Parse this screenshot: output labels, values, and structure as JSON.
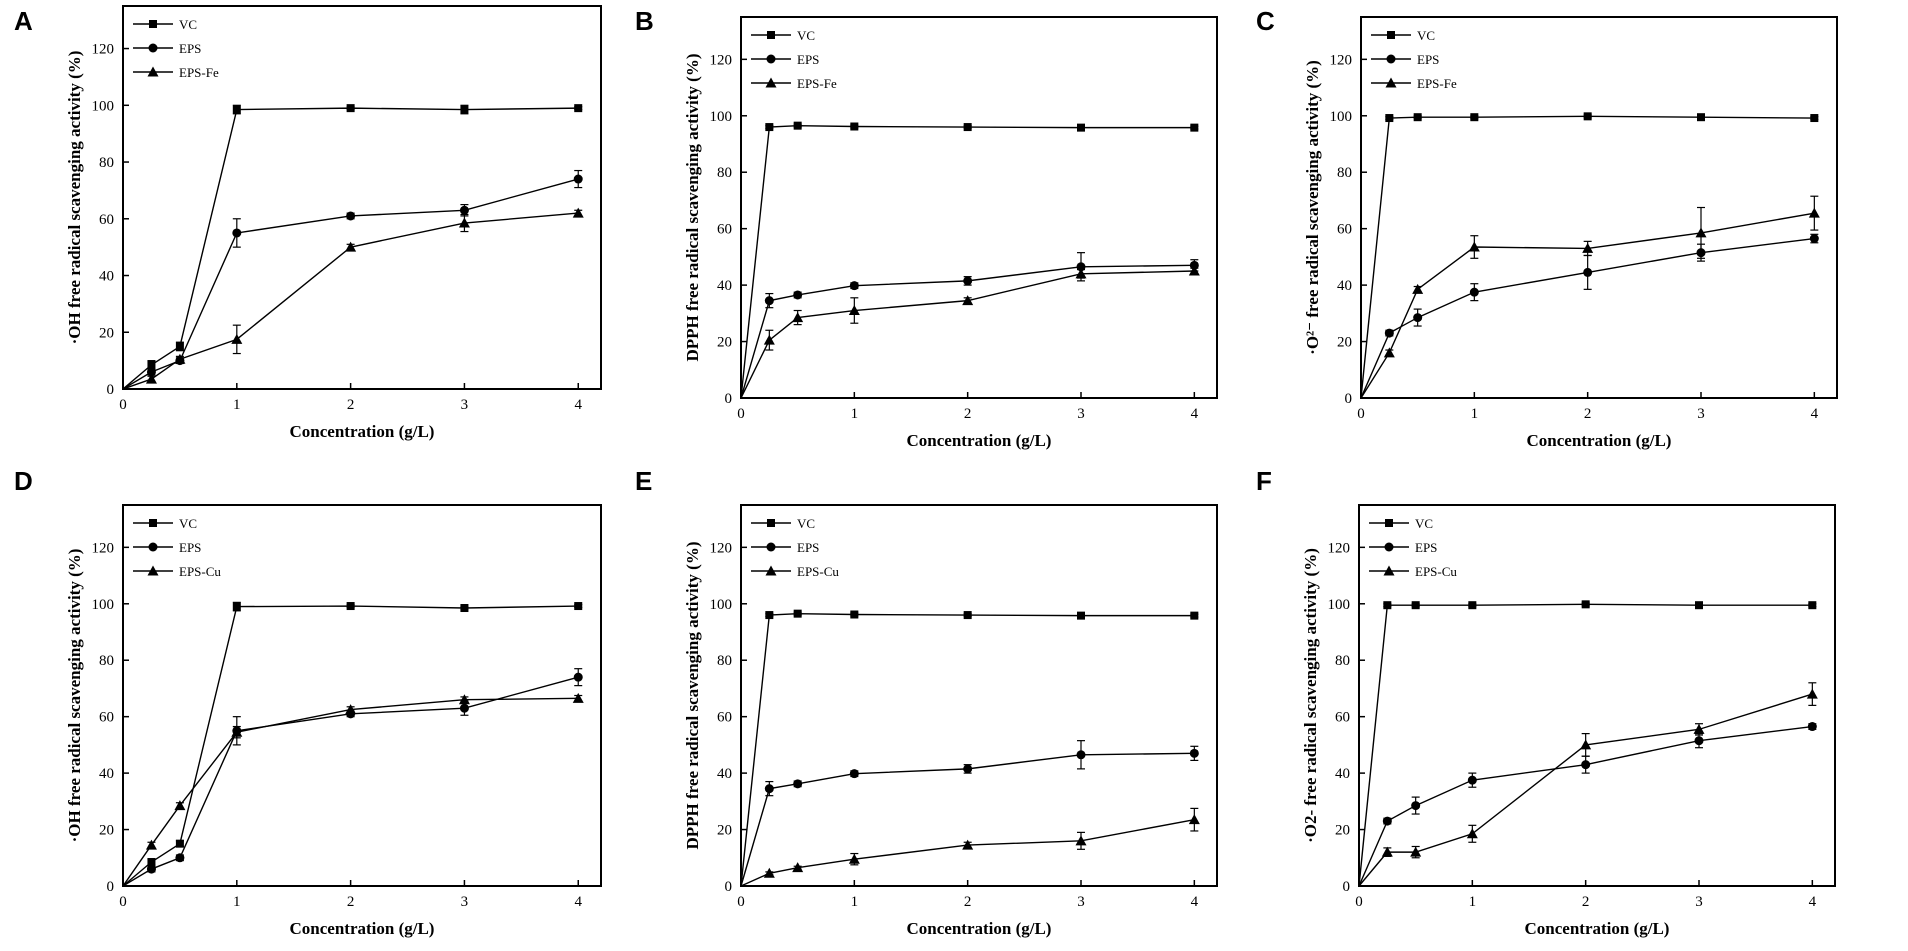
{
  "figure": {
    "background": "#ffffff",
    "line_color": "#000000"
  },
  "chart_data": [
    {
      "panel": "A",
      "type": "line",
      "xlabel": "Concentration (g/L)",
      "ylabel": "·OH free radical scavenging activity (%)",
      "xlim": [
        0,
        4.2
      ],
      "ylim": [
        0,
        135
      ],
      "xticks": [
        "0",
        "1",
        "2",
        "3",
        "4"
      ],
      "yticks": [
        "0",
        "20",
        "40",
        "60",
        "80",
        "100",
        "120"
      ],
      "legend_position": "top-left",
      "series": [
        {
          "name": "VC",
          "marker": "square",
          "x": [
            0,
            0.25,
            0.5,
            1,
            2,
            3,
            4
          ],
          "y": [
            0,
            8.5,
            15,
            98.5,
            99,
            98.5,
            99
          ],
          "err": [
            0,
            1.5,
            1.5,
            1.5,
            0.5,
            1.5,
            0.5
          ]
        },
        {
          "name": "EPS",
          "marker": "circle",
          "x": [
            0,
            0.25,
            0.5,
            1,
            2,
            3,
            4
          ],
          "y": [
            0,
            6,
            10,
            55,
            61,
            63,
            74
          ],
          "err": [
            0,
            1,
            1,
            5,
            1,
            2,
            3
          ]
        },
        {
          "name": "EPS-Fe",
          "marker": "triangle",
          "x": [
            0,
            0.25,
            0.5,
            1,
            2,
            3,
            4
          ],
          "y": [
            0,
            3.5,
            10.5,
            17.5,
            50,
            58.5,
            62
          ],
          "err": [
            0,
            1,
            1,
            5,
            1,
            3,
            1
          ]
        }
      ]
    },
    {
      "panel": "B",
      "type": "line",
      "xlabel": "Concentration (g/L)",
      "ylabel": "DPPH free radical scavenging activity (%)",
      "xlim": [
        0,
        4.2
      ],
      "ylim": [
        0,
        135
      ],
      "xticks": [
        "0",
        "1",
        "2",
        "3",
        "4"
      ],
      "yticks": [
        "0",
        "20",
        "40",
        "60",
        "80",
        "100",
        "120"
      ],
      "legend_position": "top-left",
      "series": [
        {
          "name": "VC",
          "marker": "square",
          "x": [
            0,
            0.25,
            0.5,
            1,
            2,
            3,
            4
          ],
          "y": [
            0,
            96,
            96.5,
            96.2,
            96,
            95.8,
            95.8
          ],
          "err": [
            0,
            0.5,
            0.5,
            0.5,
            0.5,
            0.5,
            0.5
          ]
        },
        {
          "name": "EPS",
          "marker": "circle",
          "x": [
            0,
            0.25,
            0.5,
            1,
            2,
            3,
            4
          ],
          "y": [
            0,
            34.5,
            36.5,
            39.8,
            41.5,
            46.5,
            47
          ],
          "err": [
            0,
            2.5,
            1,
            1,
            1.5,
            5,
            2
          ]
        },
        {
          "name": "EPS-Fe",
          "marker": "triangle",
          "x": [
            0,
            0.25,
            0.5,
            1,
            2,
            3,
            4
          ],
          "y": [
            0,
            20.5,
            28.5,
            31,
            34.5,
            44,
            45
          ],
          "err": [
            0,
            3.5,
            2.5,
            4.5,
            1,
            1.5,
            1
          ]
        }
      ]
    },
    {
      "panel": "C",
      "type": "line",
      "xlabel": "Concentration (g/L)",
      "ylabel": "·O²⁻ free radical scavenging activity (%)",
      "xlim": [
        0,
        4.2
      ],
      "ylim": [
        0,
        135
      ],
      "xticks": [
        "0",
        "1",
        "2",
        "3",
        "4"
      ],
      "yticks": [
        "0",
        "20",
        "40",
        "60",
        "80",
        "100",
        "120"
      ],
      "legend_position": "top-left",
      "series": [
        {
          "name": "VC",
          "marker": "square",
          "x": [
            0,
            0.25,
            0.5,
            1,
            2,
            3,
            4
          ],
          "y": [
            0,
            99.2,
            99.5,
            99.5,
            99.8,
            99.5,
            99.2
          ],
          "err": [
            0,
            0.5,
            0.5,
            0.5,
            0.5,
            0.5,
            0.5
          ]
        },
        {
          "name": "EPS",
          "marker": "circle",
          "x": [
            0,
            0.25,
            0.5,
            1,
            2,
            3,
            4
          ],
          "y": [
            0,
            23,
            28.5,
            37.5,
            44.5,
            51.5,
            56.5
          ],
          "err": [
            0,
            1,
            3,
            3,
            6,
            3,
            1.5
          ]
        },
        {
          "name": "EPS-Fe",
          "marker": "triangle",
          "x": [
            0,
            0.25,
            0.5,
            1,
            2,
            3,
            4
          ],
          "y": [
            0,
            16,
            38.5,
            53.5,
            53,
            58.5,
            65.5
          ],
          "err": [
            0,
            1,
            1,
            4,
            2.5,
            9,
            6
          ]
        }
      ]
    },
    {
      "panel": "D",
      "type": "line",
      "xlabel": "Concentration (g/L)",
      "ylabel": "·OH free radical scavenging activity (%)",
      "xlim": [
        0,
        4.2
      ],
      "ylim": [
        0,
        135
      ],
      "xticks": [
        "0",
        "1",
        "2",
        "3",
        "4"
      ],
      "yticks": [
        "0",
        "20",
        "40",
        "60",
        "80",
        "100",
        "120"
      ],
      "legend_position": "top-left",
      "series": [
        {
          "name": "VC",
          "marker": "square",
          "x": [
            0,
            0.25,
            0.5,
            1,
            2,
            3,
            4
          ],
          "y": [
            0,
            8.5,
            15,
            99,
            99.2,
            98.5,
            99.2
          ],
          "err": [
            0,
            1,
            1,
            1.5,
            0.5,
            0.5,
            0.5
          ]
        },
        {
          "name": "EPS",
          "marker": "circle",
          "x": [
            0,
            0.25,
            0.5,
            1,
            2,
            3,
            4
          ],
          "y": [
            0,
            6,
            10,
            55,
            61,
            63,
            74
          ],
          "err": [
            0,
            1,
            1,
            5,
            1,
            2.5,
            3
          ]
        },
        {
          "name": "EPS-Cu",
          "marker": "triangle",
          "x": [
            0,
            0.25,
            0.5,
            1,
            2,
            3,
            4
          ],
          "y": [
            0,
            14.5,
            28.5,
            54.5,
            62.5,
            66,
            66.5
          ],
          "err": [
            0,
            1,
            1,
            2,
            1,
            1,
            1
          ]
        }
      ]
    },
    {
      "panel": "E",
      "type": "line",
      "xlabel": "Concentration (g/L)",
      "ylabel": "DPPH free radical scavenging activity (%)",
      "xlim": [
        0,
        4.2
      ],
      "ylim": [
        0,
        135
      ],
      "xticks": [
        "0",
        "1",
        "2",
        "3",
        "4"
      ],
      "yticks": [
        "0",
        "20",
        "40",
        "60",
        "80",
        "100",
        "120"
      ],
      "legend_position": "top-left",
      "series": [
        {
          "name": "VC",
          "marker": "square",
          "x": [
            0,
            0.25,
            0.5,
            1,
            2,
            3,
            4
          ],
          "y": [
            0,
            96,
            96.5,
            96.2,
            96,
            95.8,
            95.8
          ],
          "err": [
            0,
            0.5,
            0.5,
            0.5,
            0.5,
            0.5,
            0.5
          ]
        },
        {
          "name": "EPS",
          "marker": "circle",
          "x": [
            0,
            0.25,
            0.5,
            1,
            2,
            3,
            4
          ],
          "y": [
            0,
            34.5,
            36.2,
            39.8,
            41.5,
            46.5,
            47
          ],
          "err": [
            0,
            2.5,
            1,
            1,
            1.5,
            5,
            2.5
          ]
        },
        {
          "name": "EPS-Cu",
          "marker": "triangle",
          "x": [
            0,
            0.25,
            0.5,
            1,
            2,
            3,
            4
          ],
          "y": [
            0,
            4.5,
            6.5,
            9.5,
            14.5,
            16,
            23.5
          ],
          "err": [
            0,
            0.5,
            0.5,
            2,
            1,
            3,
            4
          ]
        }
      ]
    },
    {
      "panel": "F",
      "type": "line",
      "xlabel": "Concentration (g/L)",
      "ylabel": "·O2- free radical scavenging activity (%)",
      "xlim": [
        0,
        4.2
      ],
      "ylim": [
        0,
        135
      ],
      "xticks": [
        "0",
        "1",
        "2",
        "3",
        "4"
      ],
      "yticks": [
        "0",
        "20",
        "40",
        "60",
        "80",
        "100",
        "120"
      ],
      "legend_position": "top-left",
      "series": [
        {
          "name": "VC",
          "marker": "square",
          "x": [
            0,
            0.25,
            0.5,
            1,
            2,
            3,
            4
          ],
          "y": [
            0,
            99.5,
            99.5,
            99.5,
            99.8,
            99.5,
            99.5
          ],
          "err": [
            0,
            0.5,
            0.5,
            0.5,
            0.5,
            0.5,
            0.5
          ]
        },
        {
          "name": "EPS",
          "marker": "circle",
          "x": [
            0,
            0.25,
            0.5,
            1,
            2,
            3,
            4
          ],
          "y": [
            0,
            23,
            28.5,
            37.5,
            43,
            51.5,
            56.5
          ],
          "err": [
            0,
            1,
            3,
            2.5,
            3,
            2.5,
            1
          ]
        },
        {
          "name": "EPS-Cu",
          "marker": "triangle",
          "x": [
            0,
            0.25,
            0.5,
            1,
            2,
            3,
            4
          ],
          "y": [
            0,
            12,
            12,
            18.5,
            50,
            55.5,
            68
          ],
          "err": [
            0,
            1.5,
            2,
            3,
            4,
            2,
            4
          ]
        }
      ]
    }
  ]
}
